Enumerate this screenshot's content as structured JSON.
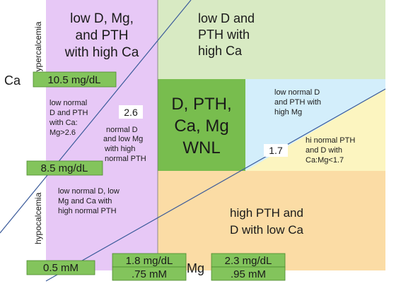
{
  "colors": {
    "purple": "#e7c8f6",
    "green_light": "#d8eac3",
    "green_dark": "#78bd4e",
    "blue": "#d3eefb",
    "yellow": "#fcf5c0",
    "orange": "#fbdca5",
    "label_green": "#83c45c",
    "line_blue": "#3b5b9a",
    "side_label": "#3a55b0"
  },
  "regions": {
    "top_left": [
      "low D, Mg,",
      "and PTH",
      "with high Ca"
    ],
    "top_right": [
      "low D and",
      "PTH with",
      "high Ca"
    ],
    "center": [
      "D, PTH,",
      "Ca, Mg",
      "WNL"
    ],
    "left_mid": [
      "low normal",
      "D and PTH",
      "with Ca:",
      "Mg>2.6"
    ],
    "mid_mid": [
      "normal D",
      "and low Mg",
      "with high",
      "normal PTH"
    ],
    "right_upper": [
      "low normal D",
      "and PTH with",
      "high Mg"
    ],
    "right_lower": [
      "hi normal PTH",
      "and D with",
      "Ca:Mg<1.7"
    ],
    "bottom_left": [
      "low normal D, low",
      "Mg and Ca with",
      "high normal PTH"
    ],
    "bottom_right": [
      "high PTH and",
      "D with low Ca"
    ]
  },
  "side_labels": {
    "top": "hypercalcemia",
    "bottom": "hypocalcemia"
  },
  "axes": {
    "y": "Ca",
    "x": "Mg"
  },
  "thresholds": {
    "ca_high": "10.5 mg/dL",
    "ca_low": "8.5 mg/dL",
    "mg_low_mgdl": "1.8 mg/dL",
    "mg_low_mm": ".75 mM",
    "mg_high_mgdl": "2.3 mg/dL",
    "mg_high_mm": ".95 mM",
    "mg_min": "0.5 mM"
  },
  "ratio_lines": {
    "upper": "2.6",
    "lower": "1.7"
  }
}
